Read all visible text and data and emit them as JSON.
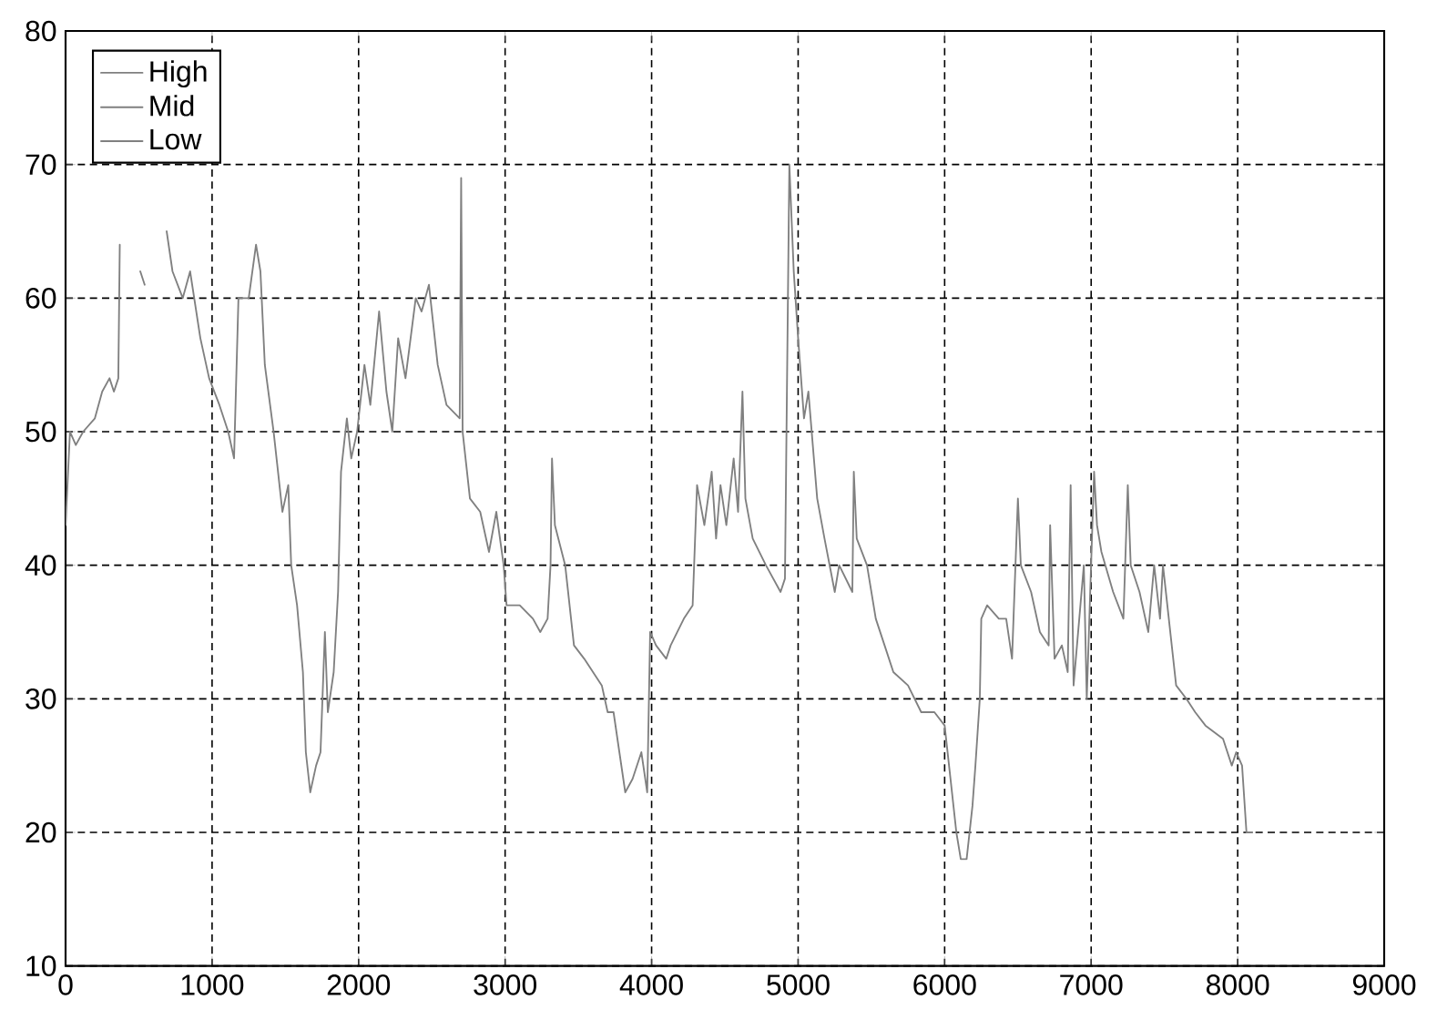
{
  "chart_data": {
    "type": "line",
    "xlim": [
      0,
      9000
    ],
    "ylim": [
      10,
      80
    ],
    "xticks": [
      0,
      1000,
      2000,
      3000,
      4000,
      5000,
      6000,
      7000,
      8000,
      9000
    ],
    "yticks": [
      10,
      20,
      30,
      40,
      50,
      60,
      70,
      80
    ],
    "grid": true,
    "legend": "top left",
    "marker": "none",
    "line_style": "solid",
    "series": [
      {
        "name": "High",
        "color": "#808080",
        "x": [
          0,
          30,
          70,
          120,
          200,
          250,
          300,
          330,
          360,
          370,
          400,
          510,
          540,
          560,
          690,
          730,
          800,
          850,
          920,
          980,
          1050,
          1110,
          1150,
          1180,
          1250,
          1300,
          1330,
          1360,
          1420,
          1480,
          1520,
          1540,
          1580,
          1620,
          1640,
          1670,
          1710,
          1740,
          1770,
          1790,
          1830,
          1860,
          1880,
          1920,
          1950,
          1990,
          2040,
          2080,
          2140,
          2190,
          2230,
          2270,
          2320,
          2390,
          2430,
          2480,
          2540,
          2600,
          2690,
          2700,
          2710,
          2760,
          2830,
          2890,
          2940,
          2990,
          3010,
          3100,
          3190,
          3240,
          3290,
          3310,
          3320,
          3340,
          3410,
          3470,
          3540,
          3660,
          3700,
          3740,
          3780,
          3820,
          3870,
          3930,
          3970,
          3990,
          4030,
          4100,
          4130,
          4220,
          4280,
          4310,
          4360,
          4410,
          4440,
          4470,
          4510,
          4560,
          4590,
          4620,
          4640,
          4690,
          4780,
          4880,
          4910,
          4940,
          4970,
          5000,
          5040,
          5070,
          5100,
          5130,
          5180,
          5250,
          5280,
          5370,
          5380,
          5400,
          5470,
          5530,
          5590,
          5650,
          5750,
          5840,
          5930,
          6000,
          6040,
          6080,
          6110,
          6150,
          6190,
          6210,
          6240,
          6250,
          6290,
          6370,
          6420,
          6460,
          6470,
          6500,
          6520,
          6590,
          6650,
          6710,
          6720,
          6750,
          6800,
          6840,
          6860,
          6880,
          6950,
          6970,
          7020,
          7040,
          7070,
          7150,
          7220,
          7250,
          7270,
          7330,
          7390,
          7430,
          7470,
          7490,
          7520,
          7580,
          7650,
          7710,
          7780,
          7900,
          7960,
          7990,
          8030,
          8060,
          8100
        ],
        "values": [
          43,
          50,
          49,
          50,
          51,
          53,
          54,
          53,
          54,
          64,
          null,
          62,
          61,
          null,
          65,
          62,
          60,
          62,
          57,
          54,
          52,
          50,
          48,
          60,
          60,
          64,
          62,
          55,
          50,
          44,
          46,
          40,
          37,
          32,
          26,
          23,
          25,
          26,
          35,
          29,
          32,
          38,
          47,
          51,
          48,
          50,
          55,
          52,
          59,
          53,
          50,
          57,
          54,
          60,
          59,
          61,
          55,
          52,
          51,
          69,
          50,
          45,
          44,
          41,
          44,
          40,
          37,
          37,
          36,
          35,
          36,
          40,
          48,
          43,
          40,
          34,
          33,
          31,
          29,
          29,
          26,
          23,
          24,
          26,
          23,
          35,
          34,
          33,
          34,
          36,
          37,
          46,
          43,
          47,
          42,
          46,
          43,
          48,
          44,
          53,
          45,
          42,
          40,
          38,
          39,
          70,
          62,
          57,
          51,
          53,
          49,
          45,
          42,
          38,
          40,
          38,
          47,
          42,
          40,
          36,
          34,
          32,
          31,
          29,
          29,
          28,
          24,
          20,
          18,
          18,
          22,
          25,
          30,
          36,
          37,
          36,
          36,
          33,
          36,
          45,
          40,
          38,
          35,
          34,
          43,
          33,
          34,
          32,
          46,
          31,
          40,
          30,
          47,
          43,
          41,
          38,
          36,
          46,
          40,
          38,
          35,
          40,
          36,
          40,
          37,
          31,
          30,
          29,
          28,
          27,
          25,
          26,
          25,
          20,
          20
        ]
      },
      {
        "name": "Mid",
        "color": "#808080"
      },
      {
        "name": "Low",
        "color": "#808080"
      }
    ]
  }
}
